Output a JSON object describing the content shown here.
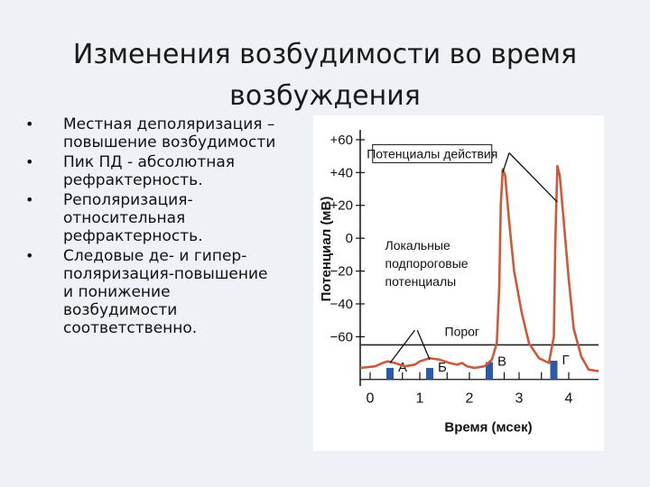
{
  "slide": {
    "title_line1": "Изменения возбудимости во время",
    "title_line2": "возбуждения"
  },
  "bullets": [
    {
      "lines": [
        "Местная деполяризация –",
        "повышение возбудимости"
      ]
    },
    {
      "lines": [
        "Пик ПД - абсолютная",
        "рефрактерность."
      ]
    },
    {
      "lines": [
        "Реполяризация-",
        "относительная",
        "рефрактерность."
      ]
    },
    {
      "lines": [
        "Следовые де- и гипер-",
        "поляризация-повышение",
        "и понижение",
        "возбудимости",
        "соответственно."
      ]
    }
  ],
  "bullet_symbol": "•",
  "chart_data": {
    "type": "line",
    "xlabel": "Время (мсек)",
    "ylabel": "Потенциал (мВ)",
    "x_ticks": [
      "0",
      "1",
      "2",
      "3",
      "4"
    ],
    "y_ticks": [
      "+60",
      "+40",
      "+20",
      "0",
      "−20",
      "−40",
      "−60"
    ],
    "y_tick_values": [
      60,
      40,
      20,
      0,
      -20,
      -40,
      -60
    ],
    "xlim": [
      -0.2,
      4.6
    ],
    "ylim": [
      -90,
      66
    ],
    "threshold": {
      "label": "Порог",
      "value": -65
    },
    "series": [
      {
        "name": "",
        "x": [
          -0.2,
          0.1,
          0.25,
          0.35,
          0.5,
          0.7,
          0.9,
          1.0,
          1.2,
          1.4,
          1.6,
          1.75,
          1.85,
          1.95,
          2.1,
          2.3,
          2.45,
          2.55,
          2.6,
          2.63,
          2.67,
          2.72,
          2.8,
          2.9,
          3.05,
          3.2,
          3.4,
          3.6,
          3.7,
          3.73,
          3.77,
          3.82,
          3.9,
          4.0,
          4.1,
          4.25,
          4.4,
          4.6
        ],
        "y": [
          -79,
          -78,
          -76,
          -75,
          -76,
          -78,
          -77,
          -75,
          -73,
          -74,
          -76,
          -77,
          -76,
          -78,
          -79,
          -78,
          -74,
          -64,
          -30,
          20,
          42,
          38,
          10,
          -20,
          -45,
          -64,
          -73,
          -76,
          -60,
          0,
          44,
          38,
          10,
          -25,
          -55,
          -72,
          -80,
          -81
        ]
      }
    ],
    "stimuli": [
      {
        "label": "А",
        "x": 0.4,
        "strength": 0.3
      },
      {
        "label": "Б",
        "x": 1.2,
        "strength": 0.3
      },
      {
        "label": "В",
        "x": 2.4,
        "strength": 0.7
      },
      {
        "label": "Г",
        "x": 3.7,
        "strength": 0.8
      }
    ],
    "annotations": [
      {
        "text_lines": [
          "Потенциалы действия"
        ]
      },
      {
        "text_lines": [
          "Локальные",
          "подпороговые",
          "потенциалы"
        ]
      }
    ],
    "colors": {
      "curve": "#cc5a3a",
      "stimulus": "#2d5aa8",
      "axis": "#111111"
    }
  }
}
